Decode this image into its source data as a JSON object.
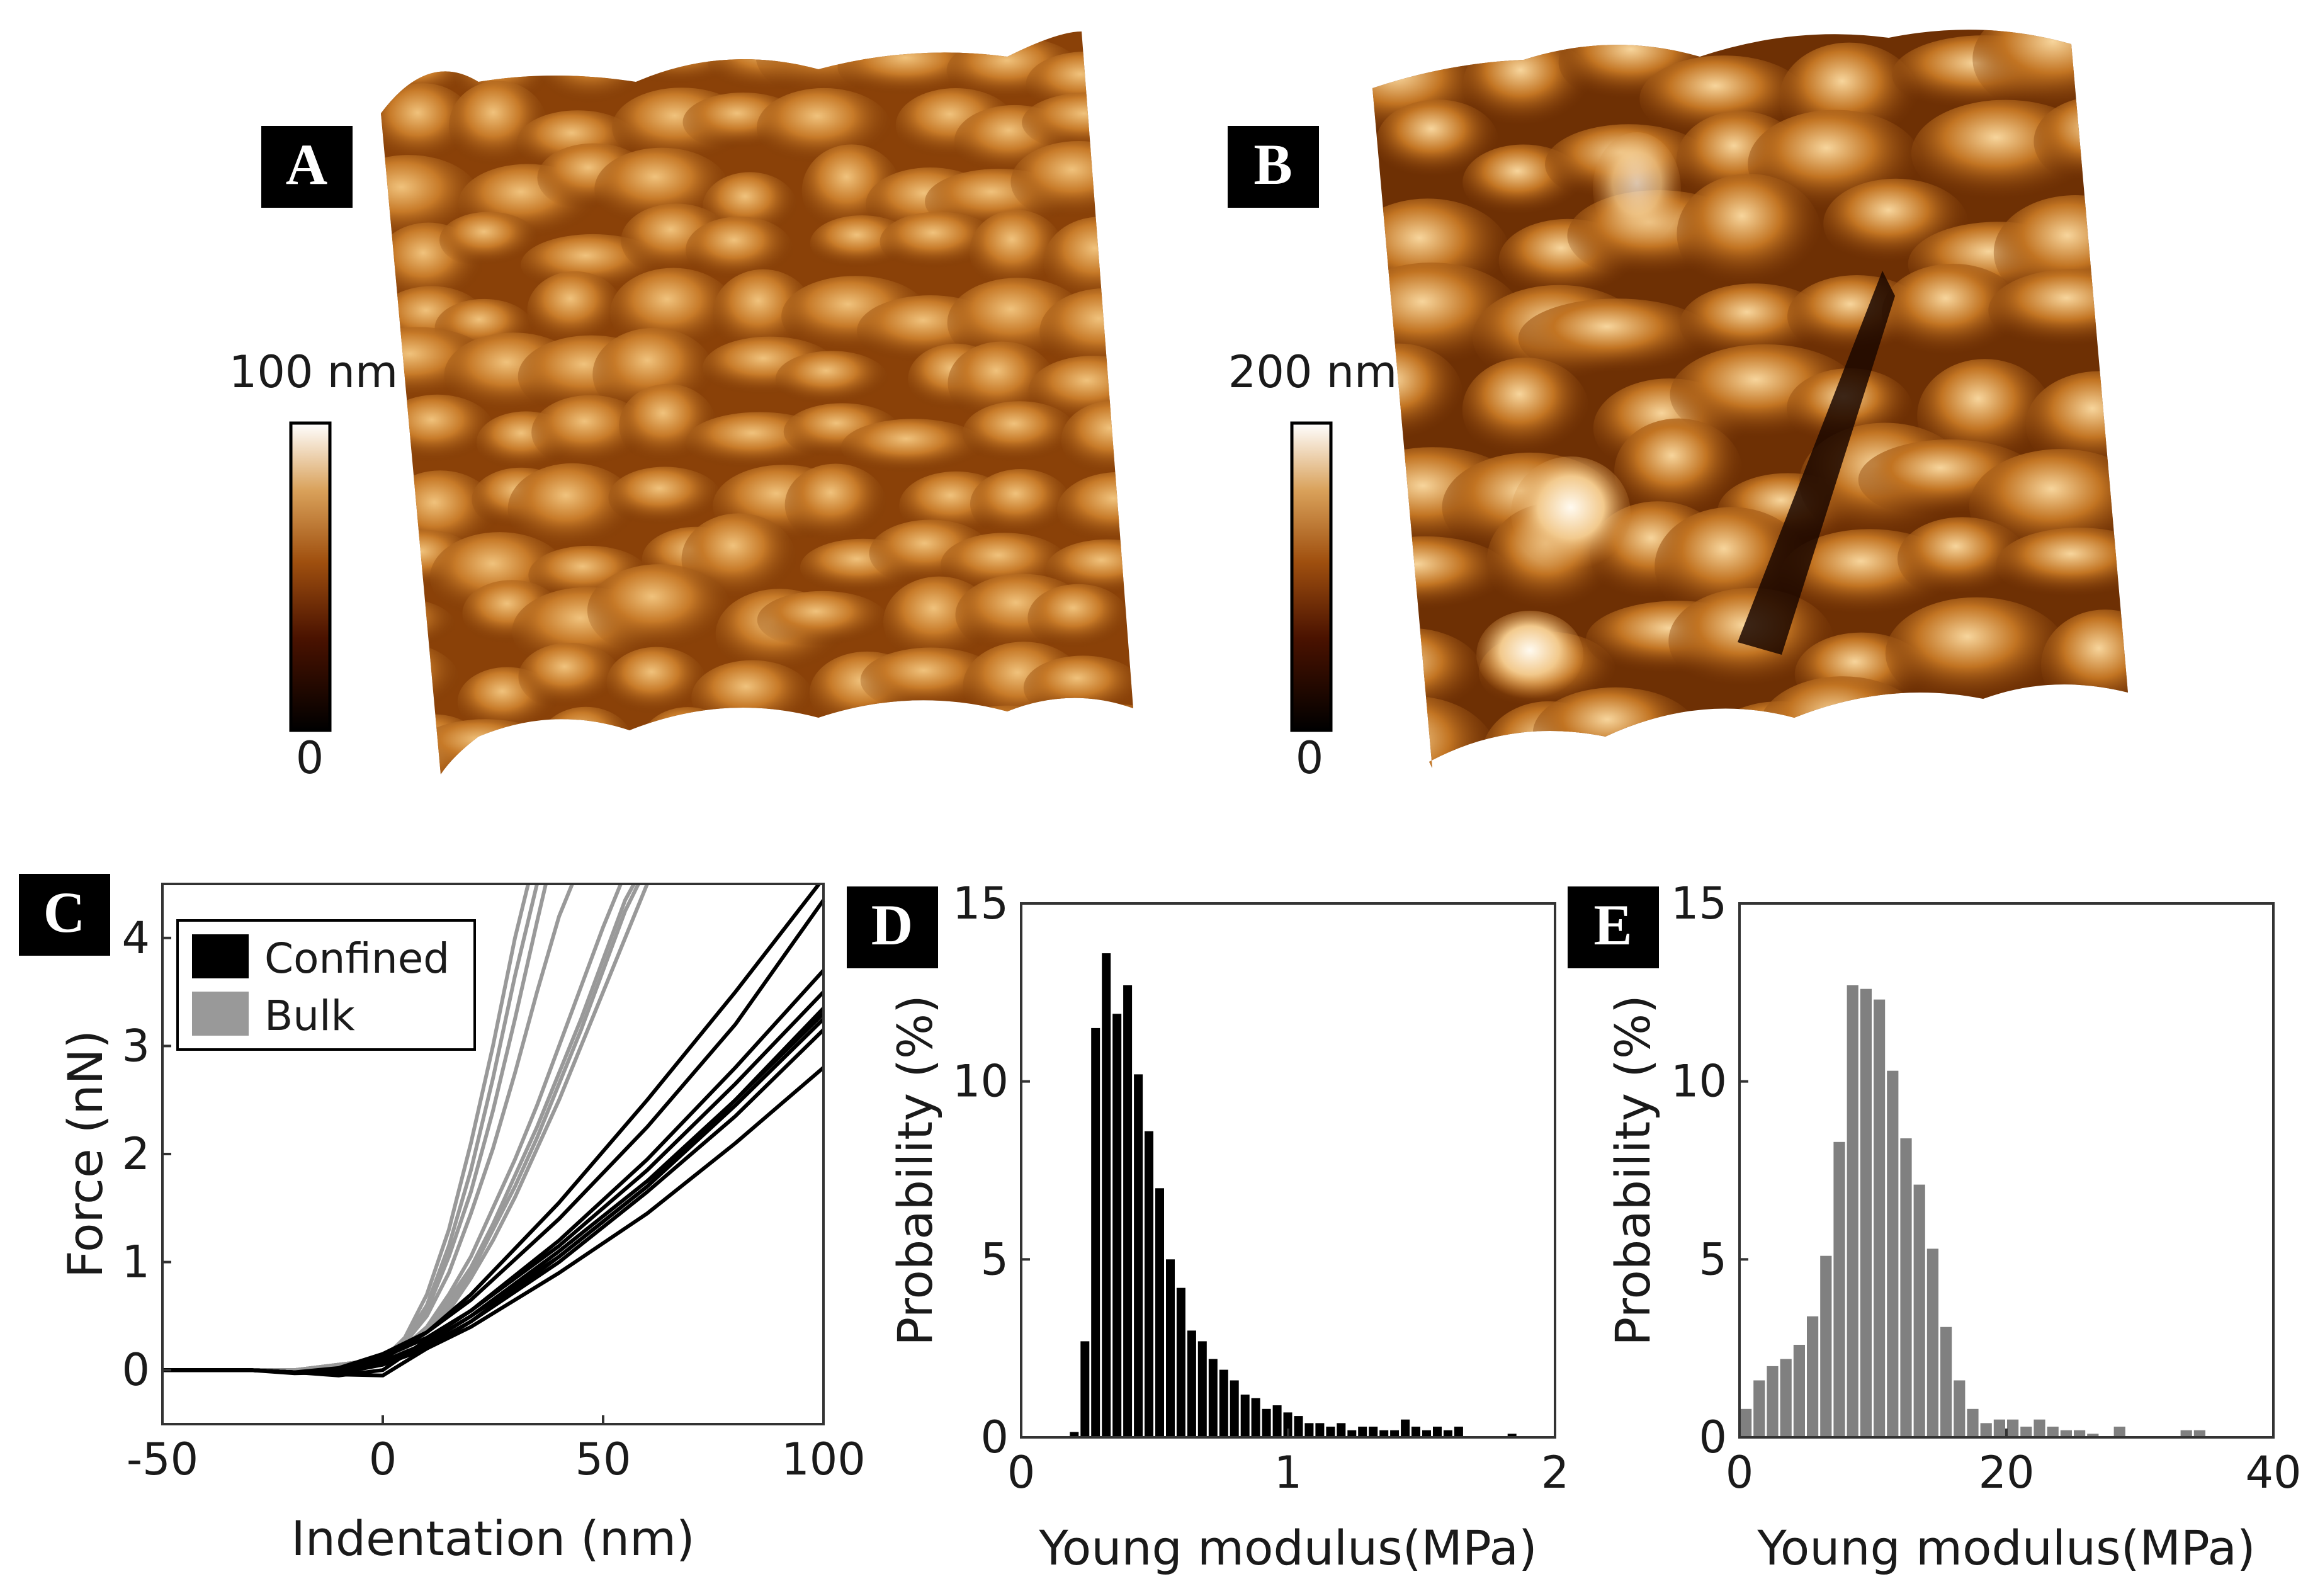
{
  "figure": {
    "panels": {
      "A": {
        "letter": "A",
        "scale_max_label": "100 nm",
        "scale_min_label": "0"
      },
      "B": {
        "letter": "B",
        "scale_max_label": "200 nm",
        "scale_min_label": "0"
      },
      "C": {
        "letter": "C"
      },
      "D": {
        "letter": "D"
      },
      "E": {
        "letter": "E"
      }
    },
    "colors": {
      "confined": "#000000",
      "bulk": "#999999",
      "afm_dark": "#1a0800",
      "afm_mid": "#b25a14",
      "afm_light": "#fff6e6"
    }
  },
  "chart_data": [
    {
      "panel": "C",
      "type": "line",
      "xlabel": "Indentation (nm)",
      "ylabel": "Force (nN)",
      "xlim": [
        -50,
        100
      ],
      "ylim": [
        -0.5,
        4.5
      ],
      "xticks": [
        -50,
        0,
        50,
        100
      ],
      "yticks": [
        0,
        1,
        2,
        3,
        4
      ],
      "legend": {
        "position": "top-left",
        "entries": [
          "Confined",
          "Bulk"
        ]
      },
      "series": [
        {
          "name": "Confined",
          "color": "#000000",
          "curves": [
            {
              "x": [
                -50,
                -30,
                -20,
                -10,
                0,
                10,
                20,
                40,
                60,
                80,
                100
              ],
              "y": [
                0,
                0,
                -0.02,
                0.02,
                0.15,
                0.35,
                0.65,
                1.4,
                2.25,
                3.2,
                4.35
              ]
            },
            {
              "x": [
                -50,
                -30,
                -20,
                -10,
                0,
                10,
                20,
                40,
                60,
                80,
                99
              ],
              "y": [
                0,
                0,
                -0.03,
                -0.02,
                0.1,
                0.35,
                0.7,
                1.55,
                2.5,
                3.5,
                4.5
              ]
            },
            {
              "x": [
                -50,
                -30,
                -20,
                -10,
                0,
                10,
                20,
                40,
                60,
                80,
                100
              ],
              "y": [
                0,
                0,
                -0.02,
                0.0,
                0.12,
                0.3,
                0.55,
                1.2,
                1.95,
                2.8,
                3.7
              ]
            },
            {
              "x": [
                -50,
                -30,
                -20,
                -10,
                0,
                10,
                20,
                40,
                60,
                80,
                100
              ],
              "y": [
                0,
                0,
                -0.02,
                -0.05,
                0.0,
                0.28,
                0.55,
                1.15,
                1.85,
                2.65,
                3.5
              ]
            },
            {
              "x": [
                -50,
                -30,
                -20,
                -10,
                0,
                10,
                20,
                40,
                60,
                80,
                100
              ],
              "y": [
                0,
                0,
                -0.02,
                -0.02,
                0.05,
                0.25,
                0.5,
                1.1,
                1.75,
                2.5,
                3.35
              ]
            },
            {
              "x": [
                -50,
                -30,
                -20,
                -10,
                0,
                10,
                20,
                40,
                60,
                80,
                100
              ],
              "y": [
                0,
                0,
                -0.02,
                -0.02,
                0.08,
                0.25,
                0.5,
                1.05,
                1.7,
                2.45,
                3.25
              ]
            },
            {
              "x": [
                -50,
                -30,
                -20,
                -10,
                0,
                10,
                20,
                40,
                60,
                80,
                100
              ],
              "y": [
                0,
                0,
                -0.02,
                -0.03,
                0.05,
                0.22,
                0.45,
                1.0,
                1.65,
                2.35,
                3.15
              ]
            },
            {
              "x": [
                -50,
                -30,
                -20,
                -10,
                0,
                10,
                20,
                40,
                60,
                80,
                100
              ],
              "y": [
                0,
                0,
                -0.02,
                -0.02,
                0.05,
                0.2,
                0.4,
                0.9,
                1.45,
                2.1,
                2.8
              ]
            },
            {
              "x": [
                -50,
                -30,
                -20,
                -10,
                0,
                10,
                20,
                40,
                60,
                80,
                100
              ],
              "y": [
                0,
                0,
                -0.02,
                -0.04,
                -0.05,
                0.2,
                0.45,
                1.05,
                1.7,
                2.5,
                3.3
              ]
            }
          ]
        },
        {
          "name": "Bulk",
          "color": "#999999",
          "curves": [
            {
              "x": [
                -50,
                -20,
                0,
                5,
                10,
                15,
                20,
                25,
                30,
                33
              ],
              "y": [
                0,
                0,
                0.1,
                0.3,
                0.7,
                1.3,
                2.1,
                3.0,
                4.0,
                4.5
              ]
            },
            {
              "x": [
                -50,
                -20,
                0,
                5,
                10,
                15,
                20,
                25,
                30,
                35
              ],
              "y": [
                0,
                0,
                0.1,
                0.28,
                0.6,
                1.15,
                1.85,
                2.7,
                3.65,
                4.5
              ]
            },
            {
              "x": [
                -50,
                -20,
                0,
                5,
                10,
                15,
                20,
                25,
                30,
                35,
                37
              ],
              "y": [
                0,
                0,
                0.1,
                0.25,
                0.55,
                1.05,
                1.65,
                2.4,
                3.25,
                4.15,
                4.5
              ]
            },
            {
              "x": [
                -50,
                -20,
                0,
                5,
                10,
                15,
                20,
                25,
                30,
                35,
                40,
                43
              ],
              "y": [
                0,
                0,
                0.1,
                0.25,
                0.5,
                0.9,
                1.45,
                2.05,
                2.75,
                3.5,
                4.2,
                4.5
              ]
            },
            {
              "x": [
                -50,
                -20,
                0,
                5,
                10,
                15,
                20,
                25,
                30,
                35,
                40,
                45,
                50,
                54
              ],
              "y": [
                0,
                0,
                0.1,
                0.22,
                0.4,
                0.7,
                1.05,
                1.5,
                1.95,
                2.45,
                3.0,
                3.55,
                4.1,
                4.5
              ]
            },
            {
              "x": [
                -50,
                -20,
                0,
                5,
                10,
                15,
                20,
                25,
                30,
                35,
                40,
                45,
                50,
                55,
                57
              ],
              "y": [
                0,
                0,
                0.1,
                0.2,
                0.38,
                0.65,
                0.95,
                1.35,
                1.8,
                2.25,
                2.75,
                3.25,
                3.8,
                4.35,
                4.5
              ]
            },
            {
              "x": [
                -50,
                -20,
                0,
                5,
                10,
                15,
                20,
                25,
                30,
                35,
                40,
                45,
                50,
                55,
                58
              ],
              "y": [
                0,
                0,
                0.1,
                0.2,
                0.35,
                0.6,
                0.9,
                1.3,
                1.7,
                2.15,
                2.65,
                3.15,
                3.7,
                4.25,
                4.5
              ]
            },
            {
              "x": [
                -50,
                -20,
                0,
                5,
                10,
                15,
                20,
                25,
                30,
                35,
                40,
                45,
                50,
                55,
                60
              ],
              "y": [
                0,
                0,
                0.1,
                0.2,
                0.35,
                0.55,
                0.85,
                1.2,
                1.6,
                2.05,
                2.5,
                3.0,
                3.5,
                4.0,
                4.5
              ]
            }
          ]
        }
      ]
    },
    {
      "panel": "D",
      "type": "bar",
      "xlabel": "Young modulus(MPa)",
      "ylabel": "Probability (%)",
      "xlim": [
        0,
        2
      ],
      "ylim": [
        0,
        15
      ],
      "xticks": [
        0,
        1,
        2
      ],
      "yticks": [
        0,
        5,
        10,
        15
      ],
      "bin_width": 0.04,
      "color": "#000000",
      "bin_starts": [
        0.18,
        0.22,
        0.26,
        0.3,
        0.34,
        0.38,
        0.42,
        0.46,
        0.5,
        0.54,
        0.58,
        0.62,
        0.66,
        0.7,
        0.74,
        0.78,
        0.82,
        0.86,
        0.9,
        0.94,
        0.98,
        1.02,
        1.06,
        1.1,
        1.14,
        1.18,
        1.22,
        1.26,
        1.3,
        1.34,
        1.38,
        1.42,
        1.46,
        1.5,
        1.54,
        1.58,
        1.62,
        1.66,
        1.7,
        1.74,
        1.78,
        1.82
      ],
      "values": [
        0.15,
        2.7,
        11.5,
        13.6,
        11.9,
        12.7,
        10.2,
        8.6,
        7.0,
        5.0,
        4.2,
        3.0,
        2.7,
        2.2,
        1.9,
        1.6,
        1.2,
        1.1,
        0.8,
        0.9,
        0.7,
        0.6,
        0.4,
        0.4,
        0.3,
        0.4,
        0.2,
        0.3,
        0.3,
        0.2,
        0.2,
        0.5,
        0.3,
        0.2,
        0.3,
        0.2,
        0.3,
        0.0,
        0.0,
        0.0,
        0.0,
        0.1
      ]
    },
    {
      "panel": "E",
      "type": "bar",
      "xlabel": "Young modulus(MPa)",
      "ylabel": "Probability (%)",
      "xlim": [
        0,
        40
      ],
      "ylim": [
        0,
        15
      ],
      "xticks": [
        0,
        20,
        40
      ],
      "yticks": [
        0,
        5,
        10,
        15
      ],
      "bin_width": 1.0,
      "color": "#808080",
      "bin_starts": [
        0,
        1,
        2,
        3,
        4,
        5,
        6,
        7,
        8,
        9,
        10,
        11,
        12,
        13,
        14,
        15,
        16,
        17,
        18,
        19,
        20,
        21,
        22,
        23,
        24,
        25,
        26,
        27,
        28,
        29,
        30,
        31,
        32,
        33,
        34
      ],
      "values": [
        0.8,
        1.6,
        2.0,
        2.2,
        2.6,
        3.4,
        5.1,
        8.3,
        12.7,
        12.6,
        12.3,
        10.3,
        8.4,
        7.1,
        5.3,
        3.1,
        1.6,
        0.8,
        0.4,
        0.5,
        0.5,
        0.3,
        0.5,
        0.3,
        0.2,
        0.2,
        0.1,
        0.0,
        0.3,
        0.0,
        0.0,
        0.0,
        0.0,
        0.2,
        0.2
      ]
    }
  ]
}
